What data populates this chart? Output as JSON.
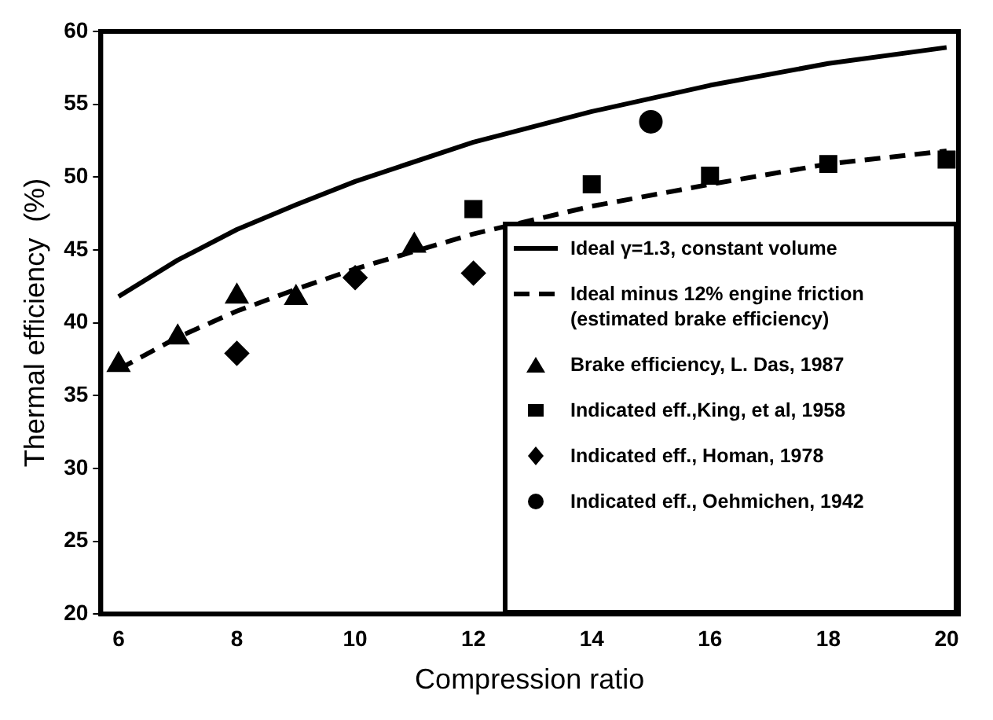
{
  "chart_data": {
    "type": "scatter",
    "xlabel": "Compression ratio",
    "ylabel": "Thermal efficiency  (%)",
    "xlim": [
      5.7,
      20.2
    ],
    "xticks": [
      6,
      8,
      10,
      12,
      14,
      16,
      18,
      20
    ],
    "ylim": [
      20,
      60
    ],
    "yticks": [
      20,
      25,
      30,
      35,
      40,
      45,
      50,
      55,
      60
    ],
    "grid": false,
    "legend": "bottom right",
    "series": [
      {
        "name": "Ideal γ=1.3, constant volume",
        "type": "line",
        "line_style": "solid",
        "marker": "none",
        "color": "#000000",
        "x": [
          6,
          7,
          8,
          9,
          10,
          12,
          14,
          16,
          18,
          20
        ],
        "values": [
          41.8,
          44.3,
          46.4,
          48.1,
          49.7,
          52.4,
          54.5,
          56.3,
          57.8,
          58.9
        ]
      },
      {
        "name": "Ideal minus 12% engine friction (estimated brake efficiency)",
        "type": "line",
        "line_style": "dashed",
        "marker": "none",
        "color": "#000000",
        "x": [
          6,
          7,
          8,
          9,
          10,
          12,
          14,
          16,
          18,
          20
        ],
        "values": [
          36.8,
          39.0,
          40.8,
          42.3,
          43.7,
          46.1,
          48.0,
          49.5,
          50.9,
          51.8
        ]
      },
      {
        "name": "Brake efficiency, L. Das, 1987",
        "type": "scatter",
        "marker": "triangle",
        "color": "#000000",
        "x": [
          6,
          7,
          8,
          9,
          11
        ],
        "values": [
          37.1,
          39.0,
          41.8,
          41.7,
          45.3
        ]
      },
      {
        "name": "Indicated eff.,King, et al, 1958",
        "type": "scatter",
        "marker": "square",
        "color": "#000000",
        "x": [
          12,
          14,
          16,
          18,
          20
        ],
        "values": [
          47.8,
          49.5,
          50.1,
          50.9,
          51.2
        ]
      },
      {
        "name": "Indicated eff., Homan, 1978",
        "type": "scatter",
        "marker": "diamond",
        "color": "#000000",
        "x": [
          8,
          10,
          12
        ],
        "values": [
          37.9,
          43.1,
          43.4
        ]
      },
      {
        "name": "Indicated eff., Oehmichen, 1942",
        "type": "scatter",
        "marker": "circle",
        "color": "#000000",
        "x": [
          15
        ],
        "values": [
          53.8
        ]
      }
    ]
  }
}
